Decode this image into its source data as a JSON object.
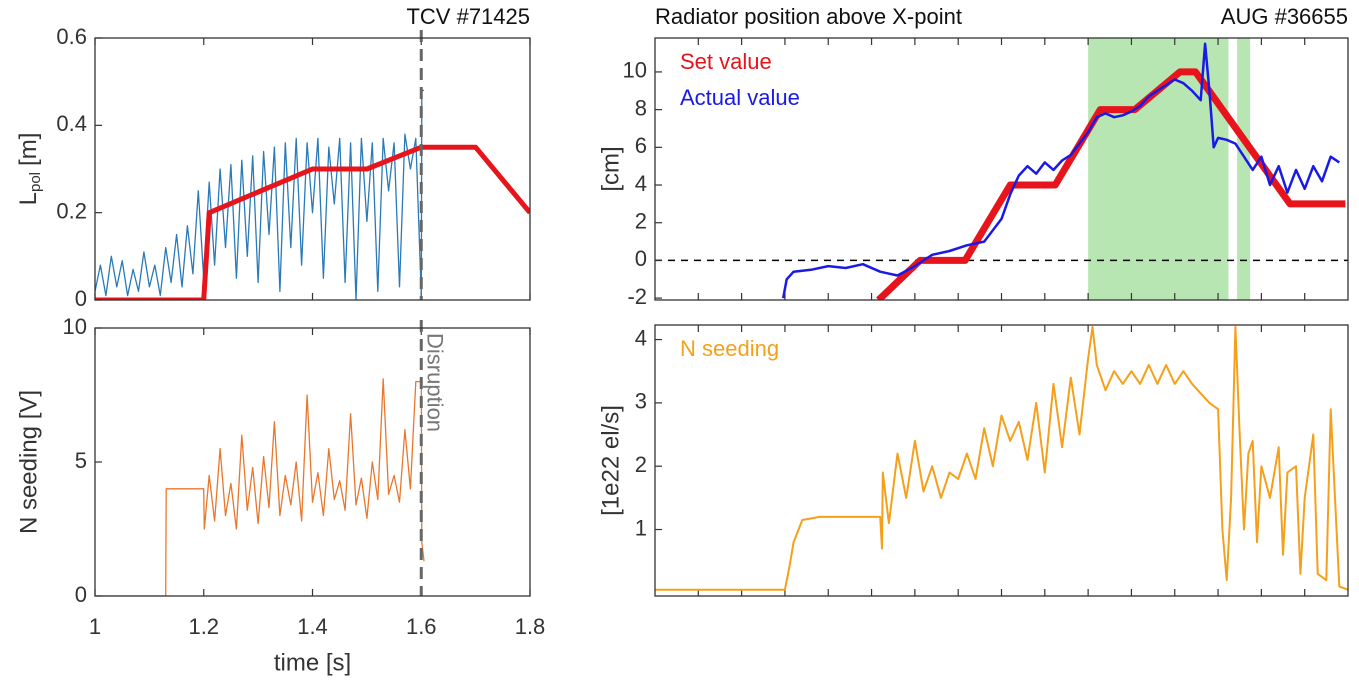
{
  "chart_data": [
    {
      "type": "line",
      "annotation": "TCV #71425",
      "ylabel": [
        "L",
        "pol",
        "[m]"
      ],
      "xlim": [
        1,
        1.8
      ],
      "xticks": [
        1,
        1.2,
        1.4,
        1.6,
        1.8
      ],
      "show_xtick_labels": false,
      "ylim": [
        0,
        0.6
      ],
      "yticks": [
        0,
        0.2,
        0.4,
        0.6
      ],
      "vline": 1.6,
      "series": [
        {
          "color": "#2a7ab8",
          "linewidth": 1.3,
          "x": [
            1.0,
            1.01,
            1.02,
            1.03,
            1.04,
            1.05,
            1.06,
            1.07,
            1.08,
            1.09,
            1.1,
            1.11,
            1.12,
            1.13,
            1.14,
            1.15,
            1.16,
            1.17,
            1.18,
            1.19,
            1.2,
            1.21,
            1.22,
            1.23,
            1.24,
            1.25,
            1.26,
            1.27,
            1.28,
            1.29,
            1.3,
            1.31,
            1.32,
            1.33,
            1.34,
            1.35,
            1.36,
            1.37,
            1.38,
            1.39,
            1.4,
            1.41,
            1.42,
            1.43,
            1.44,
            1.45,
            1.46,
            1.47,
            1.48,
            1.49,
            1.5,
            1.51,
            1.52,
            1.53,
            1.54,
            1.55,
            1.56,
            1.57,
            1.58,
            1.59,
            1.6,
            1.601,
            1.605
          ],
          "values": [
            0.02,
            0.08,
            0.01,
            0.1,
            0.03,
            0.09,
            0.01,
            0.07,
            0.02,
            0.11,
            0.03,
            0.08,
            0.01,
            0.12,
            0.04,
            0.15,
            0.03,
            0.17,
            0.06,
            0.25,
            0.05,
            0.27,
            0.08,
            0.3,
            0.12,
            0.31,
            0.05,
            0.32,
            0.1,
            0.33,
            0.04,
            0.34,
            0.15,
            0.35,
            0.02,
            0.36,
            0.12,
            0.37,
            0.08,
            0.36,
            0.2,
            0.37,
            0.05,
            0.35,
            0.22,
            0.37,
            0.04,
            0.36,
            0.0,
            0.37,
            0.18,
            0.36,
            0.02,
            0.37,
            0.25,
            0.36,
            0.03,
            0.38,
            0.3,
            0.37,
            0.01,
            0.48,
            0.48
          ]
        },
        {
          "color": "#e8141b",
          "linewidth": 5,
          "x": [
            1,
            1.2,
            1.21,
            1.4,
            1.5,
            1.6,
            1.7,
            1.8
          ],
          "values": [
            0,
            0,
            0.2,
            0.3,
            0.3,
            0.35,
            0.35,
            0.2
          ]
        }
      ]
    },
    {
      "type": "line",
      "annotation": "Disruption",
      "ylabel": "N seeding [V]",
      "xlabel": "time [s]",
      "xlim": [
        1,
        1.8
      ],
      "xticks": [
        1,
        1.2,
        1.4,
        1.6,
        1.8
      ],
      "show_xtick_labels": true,
      "ylim": [
        0,
        10
      ],
      "yticks": [
        0,
        5,
        10
      ],
      "vline": 1.6,
      "series": [
        {
          "color": "#e8772e",
          "linewidth": 1.3,
          "x": [
            1.0,
            1.13,
            1.131,
            1.2,
            1.201,
            1.21,
            1.22,
            1.23,
            1.24,
            1.25,
            1.26,
            1.27,
            1.28,
            1.29,
            1.3,
            1.31,
            1.32,
            1.33,
            1.34,
            1.35,
            1.36,
            1.37,
            1.38,
            1.39,
            1.4,
            1.41,
            1.42,
            1.43,
            1.44,
            1.45,
            1.46,
            1.47,
            1.48,
            1.49,
            1.5,
            1.51,
            1.52,
            1.53,
            1.54,
            1.55,
            1.56,
            1.57,
            1.58,
            1.59,
            1.6,
            1.601,
            1.605
          ],
          "values": [
            0,
            0,
            4,
            4,
            2.5,
            4.5,
            2.8,
            5.5,
            3.0,
            4.2,
            2.5,
            6.0,
            3.2,
            4.8,
            2.7,
            5.2,
            3.3,
            6.5,
            3.0,
            4.5,
            3.4,
            5.0,
            2.8,
            7.5,
            3.5,
            4.6,
            3.0,
            5.5,
            3.6,
            4.3,
            3.2,
            6.8,
            3.4,
            4.4,
            2.9,
            5.0,
            3.6,
            8.1,
            3.8,
            4.5,
            3.5,
            6.2,
            4.0,
            8.0,
            8.0,
            2.0,
            1.3
          ]
        }
      ]
    },
    {
      "type": "line",
      "title": "Radiator position above X-point",
      "annotation": "AUG #36655",
      "ylabel": "[cm]",
      "xlim": [
        0,
        8
      ],
      "xticks": [
        0.5,
        1,
        1.5,
        2,
        2.5,
        3,
        3.5,
        4,
        4.5,
        5,
        5.5,
        6,
        6.5,
        7,
        7.5
      ],
      "show_xtick_labels": false,
      "ylim": [
        -2.1,
        11.8
      ],
      "yticks": [
        -2,
        0,
        2,
        4,
        6,
        8,
        10
      ],
      "hline": 0,
      "shaded": [
        [
          5.0,
          6.62
        ],
        [
          6.72,
          6.87
        ]
      ],
      "shade_color": "#b8e6b2",
      "legend": "upper left",
      "series": [
        {
          "name": "Set value",
          "color": "#e8141b",
          "linewidth": 7,
          "x": [
            2.58,
            3.06,
            3.58,
            4.1,
            4.62,
            5.14,
            5.54,
            6.06,
            6.24,
            7.33,
            7.97
          ],
          "values": [
            -2.1,
            0,
            0,
            4,
            4,
            8,
            8,
            10,
            10,
            3,
            3
          ]
        },
        {
          "name": "Actual value",
          "color": "#1a1ae6",
          "linewidth": 2.5,
          "x": [
            1.48,
            1.52,
            1.6,
            1.8,
            2.0,
            2.2,
            2.4,
            2.6,
            2.8,
            3.0,
            3.2,
            3.4,
            3.6,
            3.8,
            4.0,
            4.1,
            4.2,
            4.3,
            4.4,
            4.5,
            4.6,
            4.7,
            4.8,
            4.9,
            5.0,
            5.1,
            5.2,
            5.3,
            5.4,
            5.5,
            5.6,
            5.7,
            5.8,
            5.9,
            6.0,
            6.1,
            6.2,
            6.3,
            6.35,
            6.4,
            6.45,
            6.5,
            6.6,
            6.7,
            6.8,
            6.9,
            7.0,
            7.1,
            7.2,
            7.3,
            7.4,
            7.5,
            7.6,
            7.7,
            7.8,
            7.9
          ],
          "values": [
            -2.0,
            -1.0,
            -0.6,
            -0.5,
            -0.3,
            -0.4,
            -0.2,
            -0.6,
            -0.8,
            -0.3,
            0.3,
            0.5,
            0.8,
            1.0,
            2.2,
            3.5,
            4.5,
            5.0,
            4.6,
            5.2,
            4.8,
            5.3,
            5.6,
            6.2,
            6.8,
            7.6,
            7.8,
            7.6,
            7.7,
            7.9,
            8.2,
            8.7,
            9.0,
            9.3,
            9.6,
            9.4,
            9.0,
            8.5,
            11.5,
            9.0,
            6.0,
            6.5,
            6.4,
            6.2,
            5.5,
            4.8,
            5.5,
            4.0,
            5.0,
            3.6,
            4.8,
            3.8,
            5.0,
            4.2,
            5.5,
            5.2
          ]
        }
      ]
    },
    {
      "type": "line",
      "ylabel": "[1e22 el/s]",
      "xlim": [
        0,
        8
      ],
      "xticks": [
        0.5,
        1,
        1.5,
        2,
        2.5,
        3,
        3.5,
        4,
        4.5,
        5,
        5.5,
        6,
        6.5,
        7,
        7.5
      ],
      "show_xtick_labels": false,
      "ylim": [
        -0.05,
        4.23
      ],
      "yticks": [
        1,
        2,
        3,
        4
      ],
      "legend": "upper left",
      "series": [
        {
          "name": "N seeding",
          "color": "#f5a01a",
          "linewidth": 2,
          "x": [
            0,
            1.5,
            1.55,
            1.6,
            1.7,
            1.9,
            2.1,
            2.6,
            2.62,
            2.63,
            2.7,
            2.8,
            2.9,
            3.0,
            3.1,
            3.2,
            3.3,
            3.4,
            3.5,
            3.6,
            3.7,
            3.8,
            3.9,
            4.0,
            4.1,
            4.2,
            4.3,
            4.4,
            4.5,
            4.6,
            4.7,
            4.8,
            4.9,
            5.0,
            5.05,
            5.1,
            5.2,
            5.3,
            5.4,
            5.5,
            5.6,
            5.7,
            5.8,
            5.9,
            6.0,
            6.1,
            6.2,
            6.4,
            6.5,
            6.55,
            6.6,
            6.65,
            6.7,
            6.75,
            6.8,
            6.85,
            6.9,
            6.95,
            7.0,
            7.1,
            7.2,
            7.25,
            7.3,
            7.4,
            7.45,
            7.5,
            7.6,
            7.65,
            7.75,
            7.8,
            7.85,
            7.9,
            8.0
          ],
          "values": [
            0.05,
            0.05,
            0.4,
            0.8,
            1.15,
            1.2,
            1.2,
            1.2,
            0.7,
            1.9,
            1.1,
            2.2,
            1.5,
            2.4,
            1.6,
            2.0,
            1.5,
            1.9,
            1.8,
            2.2,
            1.8,
            2.6,
            2.0,
            2.8,
            2.4,
            2.7,
            2.1,
            3.0,
            1.9,
            3.3,
            2.3,
            3.4,
            2.5,
            3.7,
            4.2,
            3.6,
            3.2,
            3.5,
            3.3,
            3.5,
            3.3,
            3.6,
            3.3,
            3.6,
            3.3,
            3.5,
            3.3,
            3.0,
            2.9,
            1.0,
            0.2,
            1.5,
            4.2,
            2.5,
            1.0,
            2.2,
            2.4,
            0.8,
            2.0,
            1.5,
            2.3,
            0.6,
            1.9,
            2.0,
            0.3,
            1.5,
            2.5,
            0.3,
            0.2,
            2.9,
            1.5,
            0.1,
            0.05
          ]
        }
      ]
    }
  ]
}
